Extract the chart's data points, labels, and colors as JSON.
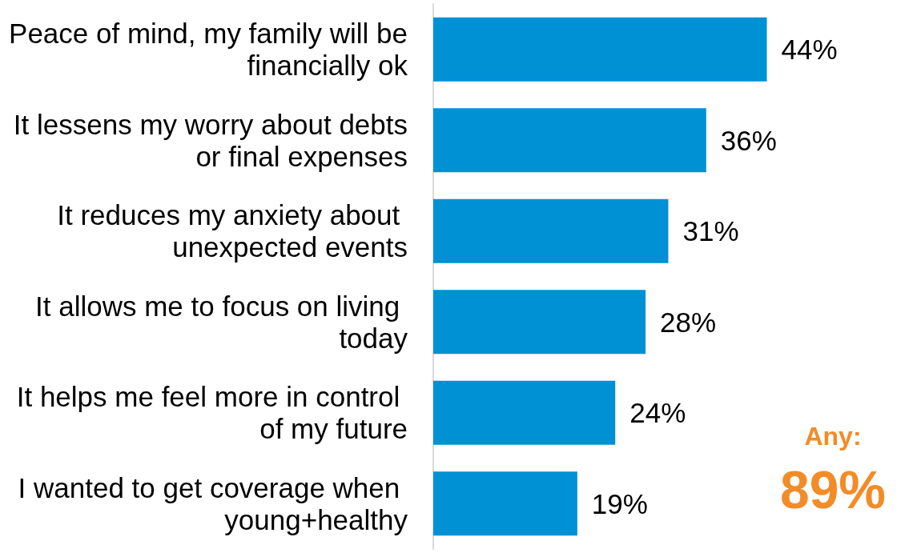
{
  "chart_data": {
    "type": "bar",
    "orientation": "horizontal",
    "categories": [
      "Peace of mind, my family will be financially ok",
      "It lessens my worry about debts or final expenses",
      "It reduces my anxiety about unexpected events",
      "It allows me to focus on living today",
      "It helps me feel more in control of my future",
      "I wanted to get coverage when young+healthy"
    ],
    "values": [
      44,
      36,
      31,
      28,
      24,
      19
    ],
    "value_labels": [
      "44%",
      "36%",
      "31%",
      "28%",
      "24%",
      "19%"
    ],
    "color": "#0091d5",
    "annotations": [
      "Any:",
      "89%"
    ]
  }
}
